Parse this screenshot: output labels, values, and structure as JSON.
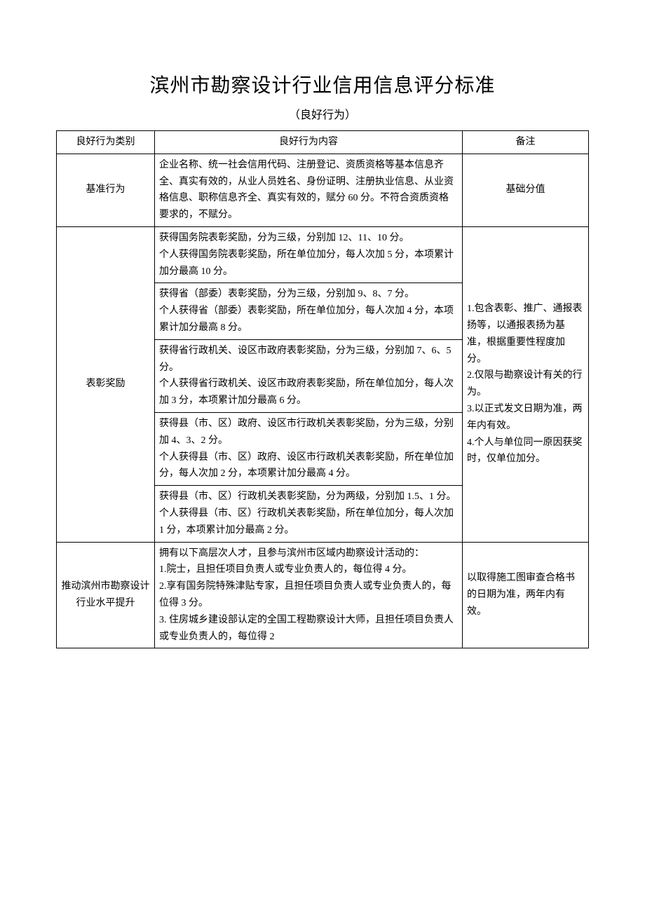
{
  "title": "滨州市勘察设计行业信用信息评分标准",
  "subtitle": "（良好行为）",
  "header": {
    "col1": "良好行为类别",
    "col2": "良好行为内容",
    "col3": "备注"
  },
  "rows": {
    "baseline": {
      "category": "基准行为",
      "content": "企业名称、统一社会信用代码、注册登记、资质资格等基本信息齐全、真实有效的，从业人员姓名、身份证明、注册执业信息、从业资格信息、职称信息齐全、真实有效的，赋分 60 分。不符合资质资格要求的，不赋分。",
      "remark": "基础分值"
    },
    "award": {
      "category": "表彰奖励",
      "cells": [
        "获得国务院表彰奖励，分为三级，分别加 12、11、10 分。\n个人获得国务院表彰奖励，所在单位加分，每人次加 5 分，本项累计加分最高 10 分。",
        "获得省（部委）表彰奖励，分为三级，分别加 9、8、7 分。\n个人获得省（部委）表彰奖励，所在单位加分，每人次加 4 分，本项累计加分最高 8 分。",
        "获得省行政机关、设区市政府表彰奖励，分为三级，分别加 7、6、5 分。\n个人获得省行政机关、设区市政府表彰奖励，所在单位加分，每人次加 3 分，本项累计加分最高 6 分。",
        "获得县（市、区）政府、设区市行政机关表彰奖励，分为三级，分别加 4、3、2 分。\n个人获得县（市、区）政府、设区市行政机关表彰奖励，所在单位加分，每人次加 2 分，本项累计加分最高 4 分。",
        "获得县（市、区）行政机关表彰奖励，分为两级，分别加 1.5、1 分。\n个人获得县（市、区）行政机关表彰奖励，所在单位加分，每人次加 1 分，本项累计加分最高 2 分。"
      ],
      "remark": "1.包含表彰、推广、通报表扬等，以通报表扬为基准，根据重要性程度加分。\n2.仅限与勘察设计有关的行为。\n3.以正式发文日期为准，两年内有效。\n4.个人与单位同一原因获奖时，仅单位加分。"
    },
    "promote": {
      "category": "推动滨州市勘察设计行业水平提升",
      "content": "拥有以下高层次人才，且参与滨州市区域内勘察设计活动的：\n1.院士，且担任项目负责人或专业负责人的，每位得 4 分。\n2.享有国务院特殊津贴专家，且担任项目负责人或专业负责人的，每位得 3 分。\n3. 住房城乡建设部认定的全国工程勘察设计大师，且担任项目负责人或专业负责人的，每位得 2",
      "remark": "以取得施工图审查合格书的日期为准，两年内有效。"
    }
  }
}
